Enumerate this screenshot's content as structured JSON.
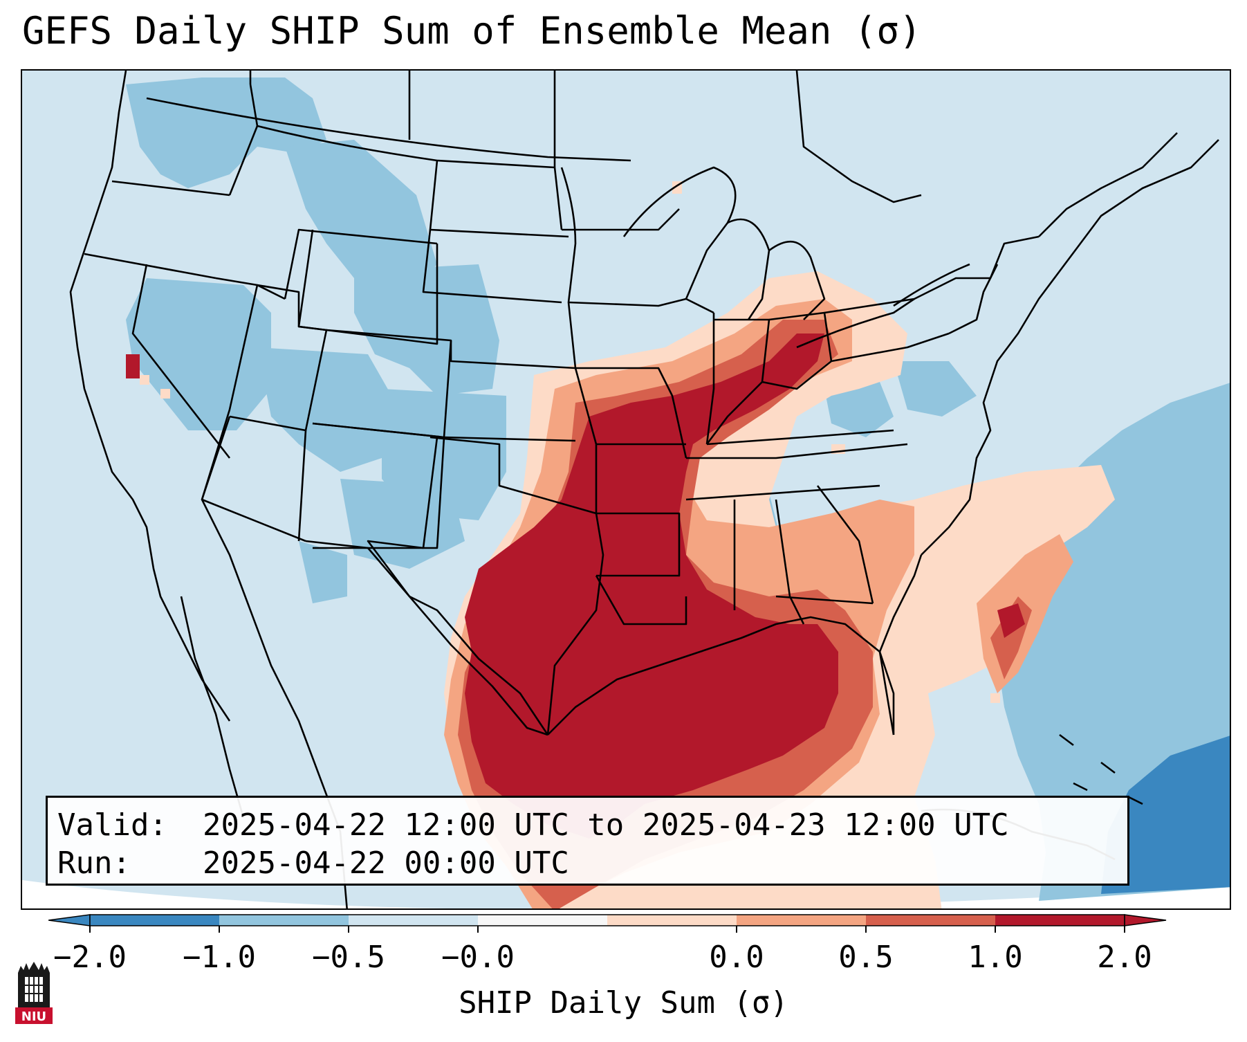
{
  "title": "GEFS Daily SHIP Sum of Ensemble Mean (σ)",
  "info": {
    "valid_key": "Valid:",
    "valid_value": "2025-04-22 12:00 UTC to 2025-04-23 12:00 UTC",
    "run_key": "Run:",
    "run_value": "2025-04-22 00:00 UTC"
  },
  "colorbar": {
    "label": "SHIP Daily Sum (σ)",
    "ticks": [
      "−2.0",
      "−1.0",
      "−0.5",
      "−0.0",
      "0.0",
      "0.5",
      "1.0",
      "2.0"
    ],
    "colors": [
      "#3a87c0",
      "#92c5de",
      "#d1e5f0",
      "#f7f7f7",
      "#fddbc7",
      "#f4a582",
      "#d6604d",
      "#b2182b"
    ],
    "extend": "both"
  },
  "map": {
    "region": "Contiguous United States",
    "background_color": "#d1e5f0",
    "ocean_color": "#92c5de",
    "deep_ocean_color": "#3a87c0",
    "max_color": "#b2182b"
  },
  "logo": {
    "text": "NIU",
    "color": "#c8102e"
  }
}
